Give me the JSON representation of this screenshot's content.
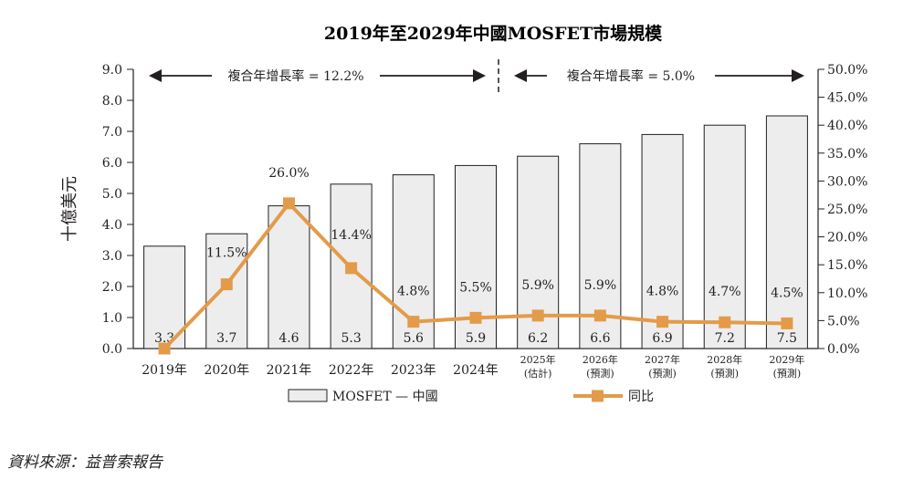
{
  "chart_data": {
    "type": "bar+line",
    "title": "2019年至2029年中國MOSFET市場規模",
    "ylabel": "十億美元",
    "ylim": [
      0,
      9
    ],
    "y2lim": [
      0,
      50
    ],
    "yticks": [
      "0.0",
      "1.0",
      "2.0",
      "3.0",
      "4.0",
      "5.0",
      "6.0",
      "7.0",
      "8.0",
      "9.0"
    ],
    "y2ticks": [
      "0.0%",
      "5.0%",
      "10.0%",
      "15.0%",
      "20.0%",
      "25.0%",
      "30.0%",
      "35.0%",
      "40.0%",
      "45.0%",
      "50.0%"
    ],
    "categories": [
      {
        "line1": "2019年",
        "line2": ""
      },
      {
        "line1": "2020年",
        "line2": ""
      },
      {
        "line1": "2021年",
        "line2": ""
      },
      {
        "line1": "2022年",
        "line2": ""
      },
      {
        "line1": "2023年",
        "line2": ""
      },
      {
        "line1": "2024年",
        "line2": ""
      },
      {
        "line1": "2025年",
        "line2": "(估計)"
      },
      {
        "line1": "2026年",
        "line2": "(預測)"
      },
      {
        "line1": "2027年",
        "line2": "(預測)"
      },
      {
        "line1": "2028年",
        "line2": "(預測)"
      },
      {
        "line1": "2029年",
        "line2": "(預測)"
      }
    ],
    "series": [
      {
        "name": "MOSFET — 中國",
        "type": "bar",
        "axis": "left",
        "values": [
          3.3,
          3.7,
          4.6,
          5.3,
          5.6,
          5.9,
          6.2,
          6.6,
          6.9,
          7.2,
          7.5
        ],
        "labels": [
          "3.3",
          "3.7",
          "4.6",
          "5.3",
          "5.6",
          "5.9",
          "6.2",
          "6.6",
          "6.9",
          "7.2",
          "7.5"
        ],
        "color": "#ededed"
      },
      {
        "name": "同比",
        "type": "line",
        "axis": "right",
        "values": [
          0.0,
          11.5,
          26.0,
          14.4,
          4.8,
          5.5,
          5.9,
          5.9,
          4.8,
          4.7,
          4.5
        ],
        "labels": [
          "",
          "11.5%",
          "26.0%",
          "14.4%",
          "4.8%",
          "5.5%",
          "5.9%",
          "5.9%",
          "4.8%",
          "4.7%",
          "4.5%"
        ],
        "color": "#e39b4a"
      }
    ],
    "cagr": [
      {
        "label": "複合年增長率 = 12.2%",
        "from": 0,
        "to": 5
      },
      {
        "label": "複合年增長率 = 5.0%",
        "from": 6,
        "to": 10
      }
    ]
  },
  "source": "資料來源：益普索報告"
}
